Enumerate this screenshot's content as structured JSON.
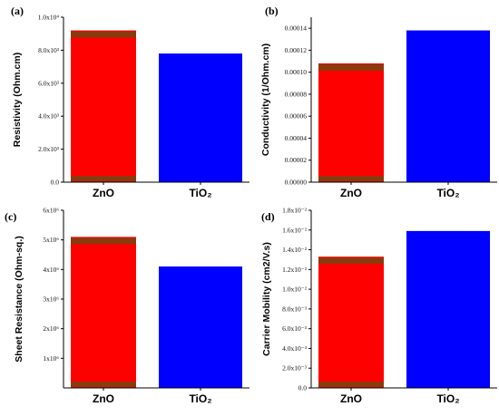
{
  "colors": {
    "zno": "#ff0000",
    "tio2": "#0000ff",
    "zno_stripe": "#8b3a0e",
    "axis": "#000000"
  },
  "chart_data": [
    {
      "type": "bar",
      "panel_label": "(a)",
      "ylabel": "Resistivity    (Ohm.cm)",
      "categories": [
        "ZnO",
        "TiO2"
      ],
      "category_labels": [
        "ZnO",
        "TiO₂"
      ],
      "values": [
        9200,
        7800
      ],
      "ylim": [
        0,
        10000
      ],
      "yticks": [
        0,
        2000,
        4000,
        6000,
        8000,
        10000
      ],
      "ytick_labels": [
        "0.0",
        "2.0x10³",
        "4.0x10³",
        "6.0x10³",
        "8.0x10³",
        "1.0x10⁴"
      ]
    },
    {
      "type": "bar",
      "panel_label": "(b)",
      "ylabel": "Conductivity  (1/Ohm.cm)",
      "categories": [
        "ZnO",
        "TiO2"
      ],
      "category_labels": [
        "ZnO",
        "TiO₂"
      ],
      "values": [
        0.000108,
        0.000138
      ],
      "ylim": [
        0,
        0.00015
      ],
      "yticks": [
        0,
        2e-05,
        4e-05,
        6e-05,
        8e-05,
        0.0001,
        0.00012,
        0.00014
      ],
      "ytick_labels": [
        "0.00000",
        "0.00002",
        "0.00004",
        "0.00006",
        "0.00008",
        "0.00010",
        "0.00012",
        "0.00014"
      ]
    },
    {
      "type": "bar",
      "panel_label": "(c)",
      "ylabel": "Sheet Resistance (Ohm-sq.)",
      "categories": [
        "ZnO",
        "TiO2"
      ],
      "category_labels": [
        "ZnO",
        "TiO₂"
      ],
      "values": 5100000,
      "values_list": [
        5100000,
        4100000
      ],
      "ylim": [
        0,
        6000000
      ],
      "yticks": [
        1000000,
        2000000,
        3000000,
        4000000,
        5000000,
        6000000
      ],
      "ytick_labels": [
        "1x10⁶",
        "2x10⁶",
        "3x10⁶",
        "4x10⁶",
        "5x10⁶",
        "6x10⁶"
      ]
    },
    {
      "type": "bar",
      "panel_label": "(d)",
      "ylabel": "Carrier Mobility (cm2/V.s)",
      "categories": [
        "ZnO",
        "TiO2"
      ],
      "category_labels": [
        "ZnO",
        "TiO₂"
      ],
      "values": [
        0.0133,
        0.0159
      ],
      "ylim": [
        0,
        0.018
      ],
      "yticks": [
        0,
        0.002,
        0.004,
        0.006,
        0.008,
        0.01,
        0.012,
        0.014,
        0.016,
        0.018
      ],
      "ytick_labels": [
        "0.0",
        "2.0x10⁻³",
        "4.0x10⁻³",
        "6.0x10⁻³",
        "8.0x10⁻³",
        "1.0x10⁻²",
        "1.2x10⁻²",
        "1.4x10⁻²",
        "1.6x10⁻²",
        "1.8x10⁻²"
      ]
    }
  ]
}
